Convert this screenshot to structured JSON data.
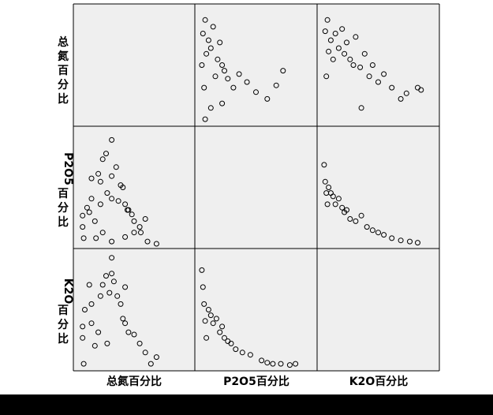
{
  "chart_data": {
    "type": "scatter",
    "subtype": "scatterplot-matrix",
    "variables": [
      "总氮百分比",
      "P2O5百分比",
      "K2O百分比"
    ],
    "row_labels": [
      [
        "总",
        "氮",
        "百",
        "分",
        "比"
      ],
      [
        "P2O5",
        "百",
        "分",
        "比"
      ],
      [
        "K2O",
        "百",
        "分",
        "比"
      ]
    ],
    "column_labels": [
      "总氮百分比",
      "P2O5百分比",
      "K2O百分比"
    ],
    "marker": "open-circle",
    "grid": false,
    "diagonal": "empty",
    "pairs": [
      {
        "row": 1,
        "col": 0,
        "x_var": "总氮百分比",
        "y_var": "P2O5百分比",
        "x": [
          0.04,
          0.04,
          0.05,
          0.08,
          0.1,
          0.12,
          0.12,
          0.15,
          0.18,
          0.2,
          0.22,
          0.25,
          0.26,
          0.3,
          0.3,
          0.34,
          0.38,
          0.4,
          0.42,
          0.45,
          0.48,
          0.5,
          0.55,
          0.6,
          0.2,
          0.22,
          0.3,
          0.36,
          0.44,
          0.5,
          0.16,
          0.3,
          0.42,
          0.56,
          0.62,
          0.7
        ],
        "y": [
          0.15,
          0.25,
          0.05,
          0.32,
          0.28,
          0.4,
          0.58,
          0.2,
          0.62,
          0.55,
          0.75,
          0.8,
          0.45,
          0.6,
          0.92,
          0.68,
          0.52,
          0.5,
          0.35,
          0.3,
          0.26,
          0.2,
          0.15,
          0.22,
          0.35,
          0.1,
          0.4,
          0.38,
          0.3,
          0.1,
          0.05,
          0.02,
          0.06,
          0.1,
          0.02,
          0.0
        ]
      },
      {
        "row": 2,
        "col": 0,
        "x_var": "总氮百分比",
        "y_var": "K2O百分比",
        "x": [
          0.04,
          0.04,
          0.05,
          0.06,
          0.1,
          0.12,
          0.12,
          0.15,
          0.2,
          0.22,
          0.25,
          0.28,
          0.3,
          0.32,
          0.35,
          0.38,
          0.4,
          0.42,
          0.45,
          0.5,
          0.55,
          0.6,
          0.65,
          0.7,
          0.3,
          0.42,
          0.18,
          0.26
        ],
        "y": [
          0.35,
          0.25,
          0.02,
          0.5,
          0.72,
          0.55,
          0.38,
          0.18,
          0.62,
          0.72,
          0.8,
          0.65,
          0.82,
          0.75,
          0.62,
          0.55,
          0.42,
          0.38,
          0.3,
          0.28,
          0.2,
          0.12,
          0.02,
          0.08,
          0.96,
          0.7,
          0.3,
          0.2
        ]
      },
      {
        "row": 0,
        "col": 1,
        "x_var": "P2O5百分比",
        "y_var": "总氮百分比",
        "x": [
          0.02,
          0.03,
          0.04,
          0.05,
          0.06,
          0.08,
          0.1,
          0.12,
          0.14,
          0.16,
          0.18,
          0.2,
          0.22,
          0.25,
          0.3,
          0.35,
          0.42,
          0.5,
          0.6,
          0.68,
          0.74,
          0.2,
          0.1,
          0.05
        ],
        "y": [
          0.5,
          0.78,
          0.3,
          0.9,
          0.6,
          0.72,
          0.65,
          0.84,
          0.4,
          0.55,
          0.7,
          0.5,
          0.45,
          0.38,
          0.3,
          0.42,
          0.35,
          0.26,
          0.2,
          0.32,
          0.45,
          0.16,
          0.12,
          0.02
        ]
      },
      {
        "row": 0,
        "col": 2,
        "x_var": "K2O百分比",
        "y_var": "总氮百分比",
        "x": [
          0.03,
          0.04,
          0.05,
          0.06,
          0.08,
          0.1,
          0.12,
          0.15,
          0.18,
          0.2,
          0.22,
          0.25,
          0.28,
          0.3,
          0.34,
          0.38,
          0.42,
          0.45,
          0.5,
          0.55,
          0.62,
          0.7,
          0.75,
          0.85,
          0.88,
          0.35
        ],
        "y": [
          0.8,
          0.4,
          0.9,
          0.62,
          0.72,
          0.55,
          0.78,
          0.65,
          0.82,
          0.6,
          0.7,
          0.55,
          0.5,
          0.75,
          0.48,
          0.6,
          0.4,
          0.5,
          0.35,
          0.42,
          0.3,
          0.2,
          0.25,
          0.3,
          0.28,
          0.12
        ]
      },
      {
        "row": 2,
        "col": 1,
        "x_var": "P2O5百分比",
        "y_var": "K2O百分比",
        "x": [
          0.02,
          0.03,
          0.04,
          0.05,
          0.06,
          0.08,
          0.1,
          0.12,
          0.15,
          0.18,
          0.2,
          0.22,
          0.25,
          0.28,
          0.32,
          0.38,
          0.45,
          0.55,
          0.6,
          0.65,
          0.72,
          0.8,
          0.85
        ],
        "y": [
          0.85,
          0.7,
          0.55,
          0.4,
          0.25,
          0.5,
          0.45,
          0.38,
          0.42,
          0.3,
          0.35,
          0.25,
          0.22,
          0.2,
          0.15,
          0.12,
          0.1,
          0.05,
          0.03,
          0.02,
          0.02,
          0.01,
          0.02
        ]
      },
      {
        "row": 1,
        "col": 2,
        "x_var": "K2O百分比",
        "y_var": "P2O5百分比",
        "x": [
          0.02,
          0.03,
          0.04,
          0.05,
          0.06,
          0.08,
          0.1,
          0.12,
          0.15,
          0.18,
          0.2,
          0.22,
          0.25,
          0.3,
          0.35,
          0.4,
          0.45,
          0.5,
          0.55,
          0.62,
          0.7,
          0.78,
          0.85
        ],
        "y": [
          0.7,
          0.55,
          0.45,
          0.35,
          0.5,
          0.45,
          0.42,
          0.35,
          0.4,
          0.32,
          0.28,
          0.3,
          0.22,
          0.2,
          0.25,
          0.15,
          0.12,
          0.1,
          0.08,
          0.05,
          0.03,
          0.02,
          0.01
        ]
      }
    ]
  }
}
